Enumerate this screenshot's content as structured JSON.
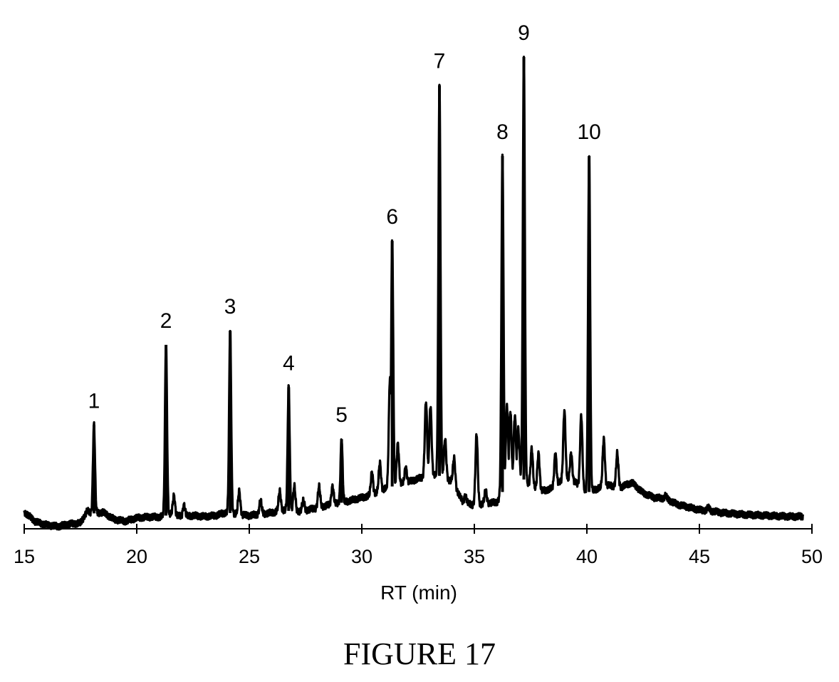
{
  "figure": {
    "caption": "FIGURE 17"
  },
  "chart_data": {
    "type": "line",
    "title": "",
    "xlabel": "RT (min)",
    "ylabel": "",
    "xlim": [
      15,
      50
    ],
    "ylim": [
      0,
      100
    ],
    "xticks": [
      15,
      20,
      25,
      30,
      35,
      40,
      45,
      50
    ],
    "grid": false,
    "legend": "none",
    "line_color": "#000000",
    "baseline": [
      [
        15.0,
        3.6
      ],
      [
        15.5,
        1.5
      ],
      [
        16.0,
        0.8
      ],
      [
        16.5,
        0.5
      ],
      [
        17.0,
        1.0
      ],
      [
        17.5,
        1.2
      ],
      [
        17.8,
        3.8
      ],
      [
        18.0,
        3.2
      ],
      [
        18.5,
        3.5
      ],
      [
        19.0,
        2.0
      ],
      [
        19.5,
        1.6
      ],
      [
        20.0,
        2.3
      ],
      [
        20.5,
        2.5
      ],
      [
        21.0,
        2.5
      ],
      [
        21.5,
        3.0
      ],
      [
        22.0,
        2.6
      ],
      [
        22.5,
        2.8
      ],
      [
        23.0,
        2.6
      ],
      [
        23.5,
        2.8
      ],
      [
        24.0,
        3.5
      ],
      [
        24.5,
        3.0
      ],
      [
        25.0,
        2.8
      ],
      [
        25.5,
        3.1
      ],
      [
        26.0,
        3.4
      ],
      [
        26.5,
        4.0
      ],
      [
        27.0,
        3.6
      ],
      [
        27.5,
        3.9
      ],
      [
        28.0,
        4.4
      ],
      [
        28.5,
        5.0
      ],
      [
        29.0,
        5.4
      ],
      [
        29.5,
        6.0
      ],
      [
        30.0,
        6.6
      ],
      [
        30.5,
        7.2
      ],
      [
        31.0,
        8.4
      ],
      [
        31.5,
        9.2
      ],
      [
        32.0,
        9.8
      ],
      [
        32.5,
        10.6
      ],
      [
        33.0,
        11.4
      ],
      [
        33.5,
        11.2
      ],
      [
        34.0,
        10.0
      ],
      [
        34.5,
        5.6
      ],
      [
        35.0,
        5.0
      ],
      [
        35.5,
        5.4
      ],
      [
        36.0,
        5.6
      ],
      [
        36.5,
        10.0
      ],
      [
        37.0,
        11.4
      ],
      [
        37.5,
        9.0
      ],
      [
        38.0,
        8.0
      ],
      [
        38.5,
        8.6
      ],
      [
        39.0,
        10.6
      ],
      [
        39.5,
        9.8
      ],
      [
        40.0,
        7.6
      ],
      [
        40.5,
        8.6
      ],
      [
        41.0,
        9.2
      ],
      [
        41.5,
        8.8
      ],
      [
        42.0,
        9.8
      ],
      [
        42.5,
        7.6
      ],
      [
        43.0,
        6.6
      ],
      [
        43.5,
        6.4
      ],
      [
        44.0,
        5.2
      ],
      [
        44.5,
        4.6
      ],
      [
        45.0,
        4.0
      ],
      [
        45.5,
        3.8
      ],
      [
        46.0,
        3.4
      ],
      [
        46.5,
        3.2
      ],
      [
        47.0,
        3.0
      ],
      [
        48.0,
        2.8
      ],
      [
        49.0,
        2.6
      ],
      [
        49.6,
        2.6
      ]
    ],
    "peaks": [
      {
        "rt": 18.1,
        "height": 22,
        "label": "1"
      },
      {
        "rt": 21.3,
        "height": 39,
        "label": "2"
      },
      {
        "rt": 24.15,
        "height": 42,
        "label": "3"
      },
      {
        "rt": 26.75,
        "height": 30,
        "label": "4"
      },
      {
        "rt": 29.1,
        "height": 19,
        "label": "5"
      },
      {
        "rt": 31.35,
        "height": 61,
        "label": "6"
      },
      {
        "rt": 33.45,
        "height": 94,
        "label": "7"
      },
      {
        "rt": 36.25,
        "height": 79,
        "label": "8"
      },
      {
        "rt": 37.2,
        "height": 100,
        "label": "9"
      },
      {
        "rt": 40.1,
        "height": 79,
        "label": "10"
      }
    ],
    "minor_peaks": [
      {
        "rt": 21.65,
        "height": 7
      },
      {
        "rt": 22.1,
        "height": 5
      },
      {
        "rt": 24.55,
        "height": 8
      },
      {
        "rt": 25.5,
        "height": 6
      },
      {
        "rt": 26.35,
        "height": 8
      },
      {
        "rt": 27.0,
        "height": 9
      },
      {
        "rt": 27.4,
        "height": 6
      },
      {
        "rt": 28.1,
        "height": 9
      },
      {
        "rt": 28.7,
        "height": 9
      },
      {
        "rt": 30.45,
        "height": 12
      },
      {
        "rt": 30.8,
        "height": 14
      },
      {
        "rt": 31.25,
        "height": 32
      },
      {
        "rt": 31.6,
        "height": 18
      },
      {
        "rt": 31.95,
        "height": 13
      },
      {
        "rt": 32.85,
        "height": 27
      },
      {
        "rt": 33.05,
        "height": 26
      },
      {
        "rt": 33.7,
        "height": 19
      },
      {
        "rt": 34.1,
        "height": 15
      },
      {
        "rt": 34.6,
        "height": 7
      },
      {
        "rt": 35.1,
        "height": 20
      },
      {
        "rt": 35.5,
        "height": 8
      },
      {
        "rt": 36.45,
        "height": 26
      },
      {
        "rt": 36.6,
        "height": 25
      },
      {
        "rt": 36.8,
        "height": 24
      },
      {
        "rt": 36.95,
        "height": 21
      },
      {
        "rt": 37.55,
        "height": 17
      },
      {
        "rt": 37.85,
        "height": 16
      },
      {
        "rt": 38.6,
        "height": 16
      },
      {
        "rt": 39.0,
        "height": 25
      },
      {
        "rt": 39.3,
        "height": 16
      },
      {
        "rt": 39.75,
        "height": 24
      },
      {
        "rt": 40.75,
        "height": 19
      },
      {
        "rt": 41.35,
        "height": 16
      },
      {
        "rt": 43.5,
        "height": 7
      },
      {
        "rt": 45.4,
        "height": 4.5
      }
    ]
  }
}
